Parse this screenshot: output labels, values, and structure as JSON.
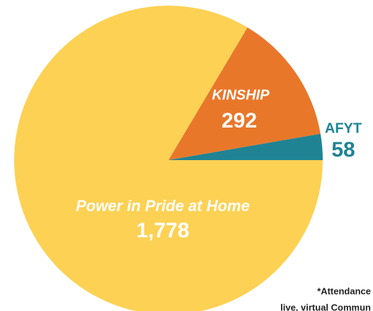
{
  "chart_data": {
    "type": "pie",
    "categories": [
      "KINSHIP",
      "AFYT",
      "Power in Pride at Home"
    ],
    "values": [
      292,
      58,
      1778
    ],
    "value_labels": [
      "292",
      "58",
      "1,778"
    ],
    "colors": [
      "#e8772a",
      "#1f8394",
      "#fdd154"
    ],
    "footnote": [
      "*Attendance",
      "live, virtual Commun"
    ]
  }
}
